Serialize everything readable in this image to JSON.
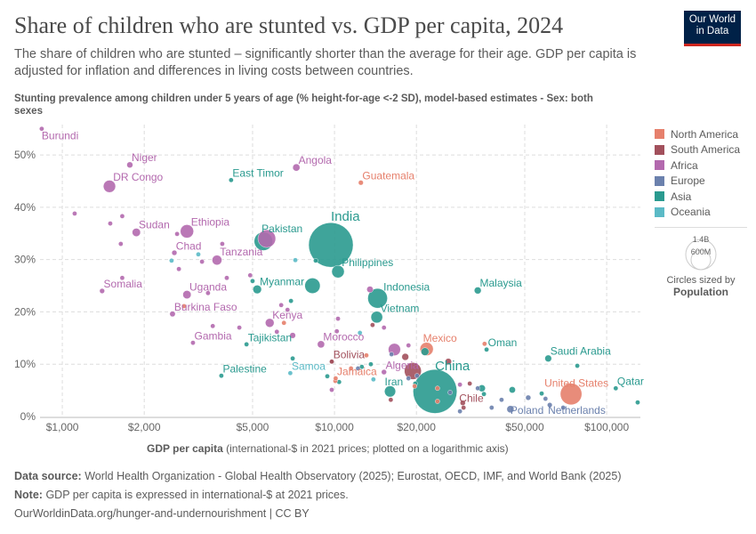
{
  "header": {
    "title": "Share of children who are stunted vs. GDP per capita, 2024",
    "subtitle": "The share of children who are stunted – significantly shorter than the average for their age. GDP per capita is adjusted for inflation and differences in living costs between countries.",
    "logo_line1": "Our World",
    "logo_line2": "in Data"
  },
  "legend": {
    "items": [
      {
        "label": "North America",
        "color": "#e6806c"
      },
      {
        "label": "South America",
        "color": "#a2505c"
      },
      {
        "label": "Africa",
        "color": "#b369ae"
      },
      {
        "label": "Europe",
        "color": "#6b81ad"
      },
      {
        "label": "Asia",
        "color": "#2a9a8f"
      },
      {
        "label": "Oceania",
        "color": "#5bbac6"
      }
    ],
    "size_big": "1.4B",
    "size_small": "600M",
    "size_caption": "Circles sized by",
    "size_var": "Population"
  },
  "footer": {
    "source_label": "Data source:",
    "source": "World Health Organization - Global Health Observatory (2025); Eurostat, OECD, IMF, and World Bank (2025)",
    "note_label": "Note:",
    "note": "GDP per capita is expressed in international-$ at 2021 prices.",
    "url": "OurWorldinData.org/hunger-and-undernourishment | CC BY"
  },
  "chart_data": {
    "type": "scatter",
    "title": "Share of children who are stunted vs. GDP per capita, 2024",
    "ylabel": "Stunting prevalence among children under 5 years of age (% height-for-age <-2 SD), model-based estimates - Sex: both sexes",
    "xlabel_bold": "GDP per capita",
    "xlabel_rest": " (international-$ in 2021 prices; plotted on a logarithmic axis)",
    "x_scale": "log",
    "xlim": [
      828,
      133000
    ],
    "ylim": [
      0,
      55.8
    ],
    "grid": true,
    "legend": "right",
    "x_ticks": [
      {
        "v": 1000,
        "label": "$1,000"
      },
      {
        "v": 2000,
        "label": "$2,000"
      },
      {
        "v": 5000,
        "label": "$5,000"
      },
      {
        "v": 10000,
        "label": "$10,000"
      },
      {
        "v": 20000,
        "label": "$20,000"
      },
      {
        "v": 50000,
        "label": "$50,000"
      },
      {
        "v": 100000,
        "label": "$100,000"
      }
    ],
    "y_ticks": [
      {
        "v": 0,
        "label": "0%"
      },
      {
        "v": 10,
        "label": "10%"
      },
      {
        "v": 20,
        "label": "20%"
      },
      {
        "v": 30,
        "label": "30%"
      },
      {
        "v": 40,
        "label": "40%"
      },
      {
        "v": 50,
        "label": "50%"
      }
    ],
    "points": [
      {
        "label": "Burundi",
        "gdp": 840,
        "y": 55.0,
        "region": "Africa",
        "pop": 14
      },
      {
        "label": "Niger",
        "gdp": 1770,
        "y": 48.1,
        "region": "Africa",
        "pop": 27
      },
      {
        "label": "DR Congo",
        "gdp": 1490,
        "y": 44.0,
        "region": "Africa",
        "pop": 110
      },
      {
        "label": "Angola",
        "gdp": 7240,
        "y": 47.6,
        "region": "Africa",
        "pop": 38
      },
      {
        "label": "East Timor",
        "gdp": 4170,
        "y": 45.2,
        "region": "Asia",
        "pop": 1.4
      },
      {
        "label": "Guatemala",
        "gdp": 12500,
        "y": 44.7,
        "region": "North America",
        "pop": 18
      },
      {
        "label": "Sudan",
        "gdp": 1870,
        "y": 35.2,
        "region": "Africa",
        "pop": 50
      },
      {
        "label": "Ethiopia",
        "gdp": 2870,
        "y": 35.4,
        "region": "Africa",
        "pop": 130
      },
      {
        "label": "Pakistan",
        "gdp": 5480,
        "y": 33.5,
        "region": "Asia",
        "pop": 250
      },
      {
        "label": "",
        "gdp": 5640,
        "y": 34.0,
        "region": "Africa",
        "pop": 230
      },
      {
        "label": "India",
        "gdp": 9700,
        "y": 32.8,
        "region": "Asia",
        "pop": 1450
      },
      {
        "label": "Chad",
        "gdp": 2580,
        "y": 31.3,
        "region": "Africa",
        "pop": 20
      },
      {
        "label": "Tanzania",
        "gdp": 3700,
        "y": 29.9,
        "region": "Africa",
        "pop": 70
      },
      {
        "label": "Philippines",
        "gdp": 10300,
        "y": 27.7,
        "region": "Asia",
        "pop": 115
      },
      {
        "label": "Malaysia",
        "gdp": 33600,
        "y": 24.1,
        "region": "Asia",
        "pop": 35
      },
      {
        "label": "Myanmar",
        "gdp": 5200,
        "y": 24.3,
        "region": "Asia",
        "pop": 54
      },
      {
        "label": "",
        "gdp": 8300,
        "y": 25.0,
        "region": "Asia",
        "pop": 173
      },
      {
        "label": "Indonesia",
        "gdp": 14400,
        "y": 22.6,
        "region": "Asia",
        "pop": 283
      },
      {
        "label": "Somalia",
        "gdp": 1400,
        "y": 24.0,
        "region": "Africa",
        "pop": 19
      },
      {
        "label": "Uganda",
        "gdp": 2870,
        "y": 23.3,
        "region": "Africa",
        "pop": 50
      },
      {
        "label": "Vietnam",
        "gdp": 14300,
        "y": 19.0,
        "region": "Asia",
        "pop": 100
      },
      {
        "label": "Burkina Faso",
        "gdp": 2540,
        "y": 19.6,
        "region": "Africa",
        "pop": 23
      },
      {
        "label": "Kenya",
        "gdp": 5780,
        "y": 17.9,
        "region": "Africa",
        "pop": 56
      },
      {
        "label": "Gambia",
        "gdp": 3020,
        "y": 14.1,
        "region": "Africa",
        "pop": 2.8
      },
      {
        "label": "Tajikistan",
        "gdp": 4750,
        "y": 13.8,
        "region": "Asia",
        "pop": 10
      },
      {
        "label": "Morocco",
        "gdp": 8920,
        "y": 13.8,
        "region": "Africa",
        "pop": 38
      },
      {
        "label": "Mexico",
        "gdp": 21800,
        "y": 12.9,
        "region": "North America",
        "pop": 130
      },
      {
        "label": "Oman",
        "gdp": 36200,
        "y": 12.8,
        "region": "Asia",
        "pop": 5
      },
      {
        "label": "Saudi Arabia",
        "gdp": 61000,
        "y": 11.1,
        "region": "Asia",
        "pop": 34
      },
      {
        "label": "Bolivia",
        "gdp": 9780,
        "y": 10.5,
        "region": "South America",
        "pop": 12
      },
      {
        "label": "Algeria",
        "gdp": 15200,
        "y": 8.5,
        "region": "Africa",
        "pop": 20
      },
      {
        "label": "Samoa",
        "gdp": 6880,
        "y": 8.3,
        "region": "Oceania",
        "pop": 0.2
      },
      {
        "label": "Palestine",
        "gdp": 3840,
        "y": 7.8,
        "region": "Asia",
        "pop": 5.5
      },
      {
        "label": "Jamaica",
        "gdp": 10100,
        "y": 7.3,
        "region": "North America",
        "pop": 2.8
      },
      {
        "label": "China",
        "gdp": 23400,
        "y": 4.8,
        "region": "Asia",
        "pop": 1410
      },
      {
        "label": "Iran",
        "gdp": 16000,
        "y": 4.8,
        "region": "Asia",
        "pop": 91
      },
      {
        "label": "Qatar",
        "gdp": 108000,
        "y": 5.4,
        "region": "Asia",
        "pop": 3
      },
      {
        "label": "United States",
        "gdp": 74000,
        "y": 4.3,
        "region": "North America",
        "pop": 340
      },
      {
        "label": "Chile",
        "gdp": 29600,
        "y": 2.6,
        "region": "South America",
        "pop": 20
      },
      {
        "label": "Poland",
        "gdp": 44300,
        "y": 1.4,
        "region": "Europe",
        "pop": 38
      },
      {
        "label": "Netherlands",
        "gdp": 61800,
        "y": 2.2,
        "region": "Europe",
        "pop": 18
      },
      {
        "label": "",
        "gdp": 1110,
        "y": 38.8,
        "region": "Africa",
        "pop": 8
      },
      {
        "label": "",
        "gdp": 1660,
        "y": 38.3,
        "region": "Africa",
        "pop": 8
      },
      {
        "label": "",
        "gdp": 1500,
        "y": 36.9,
        "region": "Africa",
        "pop": 12
      },
      {
        "label": "",
        "gdp": 1640,
        "y": 33.0,
        "region": "Africa",
        "pop": 8
      },
      {
        "label": "",
        "gdp": 2640,
        "y": 34.9,
        "region": "Africa",
        "pop": 8
      },
      {
        "label": "",
        "gdp": 3260,
        "y": 29.6,
        "region": "Africa",
        "pop": 8
      },
      {
        "label": "",
        "gdp": 3870,
        "y": 33.0,
        "region": "Africa",
        "pop": 8
      },
      {
        "label": "",
        "gdp": 2680,
        "y": 28.2,
        "region": "Africa",
        "pop": 8
      },
      {
        "label": "",
        "gdp": 4020,
        "y": 26.5,
        "region": "Africa",
        "pop": 8
      },
      {
        "label": "",
        "gdp": 4900,
        "y": 27.0,
        "region": "Africa",
        "pop": 10
      },
      {
        "label": "",
        "gdp": 1660,
        "y": 26.5,
        "region": "Africa",
        "pop": 8
      },
      {
        "label": "",
        "gdp": 3430,
        "y": 23.6,
        "region": "Africa",
        "pop": 8
      },
      {
        "label": "",
        "gdp": 3570,
        "y": 17.3,
        "region": "Africa",
        "pop": 8
      },
      {
        "label": "",
        "gdp": 4470,
        "y": 17.0,
        "region": "Africa",
        "pop": 8
      },
      {
        "label": "",
        "gdp": 6140,
        "y": 16.2,
        "region": "Africa",
        "pop": 8
      },
      {
        "label": "",
        "gdp": 7020,
        "y": 15.5,
        "region": "Africa",
        "pop": 25
      },
      {
        "label": "",
        "gdp": 6370,
        "y": 21.3,
        "region": "Africa",
        "pop": 8
      },
      {
        "label": "",
        "gdp": 6720,
        "y": 20.4,
        "region": "Africa",
        "pop": 10
      },
      {
        "label": "",
        "gdp": 9770,
        "y": 5.1,
        "region": "Africa",
        "pop": 8
      },
      {
        "label": "",
        "gdp": 13500,
        "y": 24.3,
        "region": "Africa",
        "pop": 30
      },
      {
        "label": "",
        "gdp": 10300,
        "y": 18.7,
        "region": "Africa",
        "pop": 6
      },
      {
        "label": "",
        "gdp": 15200,
        "y": 17.0,
        "region": "Africa",
        "pop": 6
      },
      {
        "label": "",
        "gdp": 16600,
        "y": 12.8,
        "region": "Africa",
        "pop": 110
      },
      {
        "label": "",
        "gdp": 18700,
        "y": 13.6,
        "region": "Africa",
        "pop": 5
      },
      {
        "label": "",
        "gdp": 10200,
        "y": 16.3,
        "region": "Africa",
        "pop": 5
      },
      {
        "label": "",
        "gdp": 28900,
        "y": 6.1,
        "region": "Africa",
        "pop": 6
      },
      {
        "label": "",
        "gdp": 5000,
        "y": 25.9,
        "region": "Asia",
        "pop": 8
      },
      {
        "label": "",
        "gdp": 6920,
        "y": 22.1,
        "region": "Asia",
        "pop": 6
      },
      {
        "label": "",
        "gdp": 8530,
        "y": 29.8,
        "region": "Asia",
        "pop": 6
      },
      {
        "label": "",
        "gdp": 9410,
        "y": 7.7,
        "region": "Asia",
        "pop": 6
      },
      {
        "label": "",
        "gdp": 7020,
        "y": 11.1,
        "region": "Asia",
        "pop": 5
      },
      {
        "label": "",
        "gdp": 21500,
        "y": 12.4,
        "region": "Asia",
        "pop": 45
      },
      {
        "label": "",
        "gdp": 12600,
        "y": 9.5,
        "region": "Asia",
        "pop": 6
      },
      {
        "label": "",
        "gdp": 13600,
        "y": 10.0,
        "region": "Asia",
        "pop": 12
      },
      {
        "label": "",
        "gdp": 19800,
        "y": 6.3,
        "region": "Asia",
        "pop": 5
      },
      {
        "label": "",
        "gdp": 34800,
        "y": 5.4,
        "region": "Asia",
        "pop": 35
      },
      {
        "label": "",
        "gdp": 35400,
        "y": 4.3,
        "region": "Asia",
        "pop": 6
      },
      {
        "label": "",
        "gdp": 45000,
        "y": 5.1,
        "region": "Asia",
        "pop": 30
      },
      {
        "label": "",
        "gdp": 57700,
        "y": 4.4,
        "region": "Asia",
        "pop": 5
      },
      {
        "label": "",
        "gdp": 78000,
        "y": 9.7,
        "region": "Asia",
        "pop": 4
      },
      {
        "label": "",
        "gdp": 130000,
        "y": 2.7,
        "region": "Asia",
        "pop": 4
      },
      {
        "label": "",
        "gdp": 10400,
        "y": 6.6,
        "region": "Asia",
        "pop": 12
      },
      {
        "label": "",
        "gdp": 2520,
        "y": 29.8,
        "region": "Oceania",
        "pop": 6
      },
      {
        "label": "",
        "gdp": 3160,
        "y": 31.0,
        "region": "Oceania",
        "pop": 6
      },
      {
        "label": "",
        "gdp": 7180,
        "y": 29.9,
        "region": "Oceania",
        "pop": 5
      },
      {
        "label": "",
        "gdp": 12400,
        "y": 16.0,
        "region": "Oceania",
        "pop": 1
      },
      {
        "label": "",
        "gdp": 13900,
        "y": 7.1,
        "region": "Oceania",
        "pop": 1
      },
      {
        "label": "",
        "gdp": 2800,
        "y": 21.1,
        "region": "North America",
        "pop": 4
      },
      {
        "label": "",
        "gdp": 6520,
        "y": 17.9,
        "region": "North America",
        "pop": 4
      },
      {
        "label": "",
        "gdp": 10070,
        "y": 6.8,
        "region": "North America",
        "pop": 4
      },
      {
        "label": "",
        "gdp": 11500,
        "y": 9.2,
        "region": "North America",
        "pop": 4
      },
      {
        "label": "",
        "gdp": 13100,
        "y": 11.7,
        "region": "North America",
        "pop": 4
      },
      {
        "label": "",
        "gdp": 35600,
        "y": 13.9,
        "region": "North America",
        "pop": 1
      },
      {
        "label": "",
        "gdp": 19700,
        "y": 5.8,
        "region": "North America",
        "pop": 4
      },
      {
        "label": "",
        "gdp": 23900,
        "y": 5.4,
        "region": "North America",
        "pop": 4
      },
      {
        "label": "",
        "gdp": 23900,
        "y": 2.9,
        "region": "North America",
        "pop": 4
      },
      {
        "label": "",
        "gdp": 13800,
        "y": 17.5,
        "region": "South America",
        "pop": 5
      },
      {
        "label": "",
        "gdp": 18200,
        "y": 11.4,
        "region": "South America",
        "pop": 35
      },
      {
        "label": "",
        "gdp": 19400,
        "y": 8.7,
        "region": "South America",
        "pop": 210
      },
      {
        "label": "",
        "gdp": 26200,
        "y": 10.5,
        "region": "South America",
        "pop": 30
      },
      {
        "label": "",
        "gdp": 16100,
        "y": 3.2,
        "region": "South America",
        "pop": 6
      },
      {
        "label": "",
        "gdp": 31400,
        "y": 6.3,
        "region": "South America",
        "pop": 5
      },
      {
        "label": "",
        "gdp": 29800,
        "y": 1.7,
        "region": "South America",
        "pop": 4
      },
      {
        "label": "",
        "gdp": 9770,
        "y": 10.5,
        "region": "South America",
        "pop": 4
      },
      {
        "label": "",
        "gdp": 16200,
        "y": 11.9,
        "region": "Europe",
        "pop": 6
      },
      {
        "label": "",
        "gdp": 20100,
        "y": 7.8,
        "region": "Europe",
        "pop": 6
      },
      {
        "label": "",
        "gdp": 26600,
        "y": 4.6,
        "region": "Europe",
        "pop": 6
      },
      {
        "label": "",
        "gdp": 33600,
        "y": 5.4,
        "region": "Europe",
        "pop": 6
      },
      {
        "label": "",
        "gdp": 41100,
        "y": 3.2,
        "region": "Europe",
        "pop": 5
      },
      {
        "label": "",
        "gdp": 51500,
        "y": 3.6,
        "region": "Europe",
        "pop": 20
      },
      {
        "label": "",
        "gdp": 69200,
        "y": 1.7,
        "region": "Europe",
        "pop": 5
      },
      {
        "label": "",
        "gdp": 37800,
        "y": 1.7,
        "region": "Europe",
        "pop": 5
      },
      {
        "label": "",
        "gdp": 28900,
        "y": 1.0,
        "region": "Europe",
        "pop": 5
      },
      {
        "label": "",
        "gdp": 59600,
        "y": 3.4,
        "region": "Europe",
        "pop": 5
      },
      {
        "label": "",
        "gdp": 12200,
        "y": 9.2,
        "region": "Europe",
        "pop": 5
      },
      {
        "label": "",
        "gdp": 18700,
        "y": 7.3,
        "region": "Europe",
        "pop": 5
      }
    ]
  }
}
